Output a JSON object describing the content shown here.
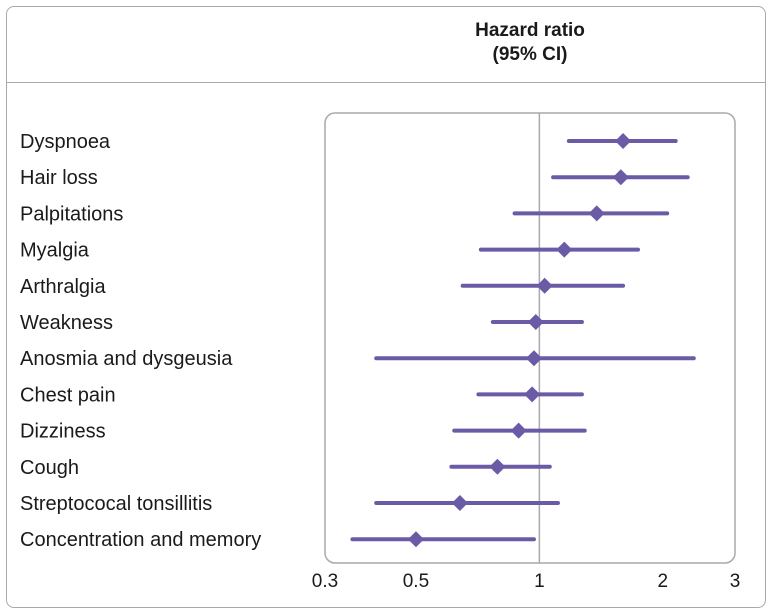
{
  "header": {
    "line1": "Hazard ratio",
    "line2": "(95% CI)"
  },
  "colors": {
    "marker": "#6b5ba6",
    "line": "#6b5ba6",
    "reference": "#a7a9ac",
    "border": "#a7a9ac"
  },
  "chart_data": {
    "type": "forest",
    "title": "Hazard ratio (95% CI)",
    "x_scale": "log",
    "xlim": [
      0.3,
      3
    ],
    "x_ticks": [
      0.3,
      0.5,
      1,
      2,
      3
    ],
    "x_tick_labels": [
      "0.3",
      "0.5",
      "1",
      "2",
      "3"
    ],
    "reference_line": 1,
    "grid": false,
    "rows": [
      {
        "label": "Dyspnoea",
        "hr": 1.6,
        "lower": 1.18,
        "upper": 2.15
      },
      {
        "label": "Hair loss",
        "hr": 1.58,
        "lower": 1.08,
        "upper": 2.3
      },
      {
        "label": "Palpitations",
        "hr": 1.38,
        "lower": 0.87,
        "upper": 2.05
      },
      {
        "label": "Myalgia",
        "hr": 1.15,
        "lower": 0.72,
        "upper": 1.74
      },
      {
        "label": "Arthralgia",
        "hr": 1.03,
        "lower": 0.65,
        "upper": 1.6
      },
      {
        "label": "Weakness",
        "hr": 0.98,
        "lower": 0.77,
        "upper": 1.27
      },
      {
        "label": "Anosmia and dysgeusia",
        "hr": 0.97,
        "lower": 0.4,
        "upper": 2.38
      },
      {
        "label": "Chest pain",
        "hr": 0.96,
        "lower": 0.71,
        "upper": 1.27
      },
      {
        "label": "Dizziness",
        "hr": 0.89,
        "lower": 0.62,
        "upper": 1.29
      },
      {
        "label": "Cough",
        "hr": 0.79,
        "lower": 0.61,
        "upper": 1.06
      },
      {
        "label": "Streptococal tonsillitis",
        "hr": 0.64,
        "lower": 0.4,
        "upper": 1.11
      },
      {
        "label": "Concentration and memory",
        "hr": 0.5,
        "lower": 0.35,
        "upper": 0.97
      }
    ]
  }
}
